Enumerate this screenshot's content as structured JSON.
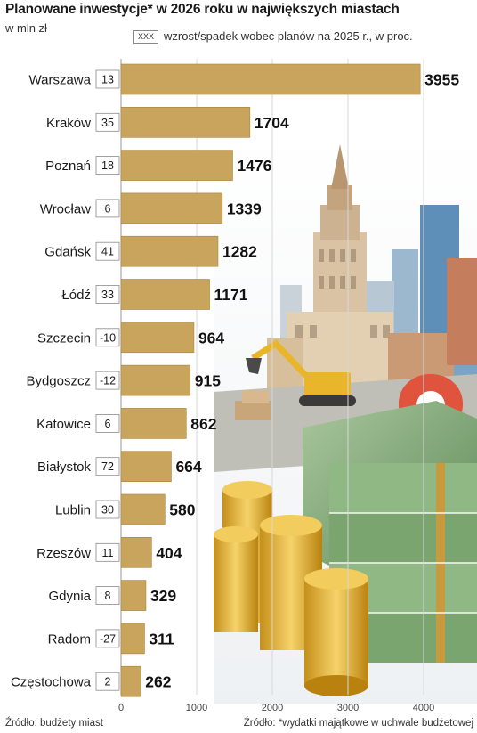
{
  "title": "Planowane inwestycje* w 2026 roku w największych miastach",
  "unit": "w mln zł",
  "legend": {
    "box": "XXX",
    "text": "wzrost/spadek wobec planów na 2025 r., w proc."
  },
  "source_left": "Źródło: budżety miast",
  "source_right": "Źródło: *wydatki majątkowe w uchwale budżetowej",
  "colors": {
    "bar": "#c9a45c",
    "bar_edge": "#a9833c",
    "grid": "#d7d7d7"
  },
  "chart_data": {
    "type": "bar",
    "orientation": "horizontal",
    "categories": [
      "Warszawa",
      "Kraków",
      "Poznań",
      "Wrocław",
      "Gdańsk",
      "Łódź",
      "Szczecin",
      "Bydgoszcz",
      "Katowice",
      "Białystok",
      "Lublin",
      "Rzeszów",
      "Gdynia",
      "Radom",
      "Częstochowa"
    ],
    "values": [
      3955,
      1704,
      1476,
      1339,
      1282,
      1171,
      964,
      915,
      862,
      664,
      580,
      404,
      329,
      311,
      262
    ],
    "change_labels": [
      "13",
      "35",
      "18",
      "6",
      "41",
      "33",
      "-10",
      "-12",
      "6",
      "72",
      "30",
      "11",
      "8",
      "-27",
      "2"
    ],
    "xlim": [
      0,
      4000
    ],
    "xticks": [
      "0",
      "1000",
      "2000",
      "3000",
      "4000"
    ],
    "grid": true
  }
}
